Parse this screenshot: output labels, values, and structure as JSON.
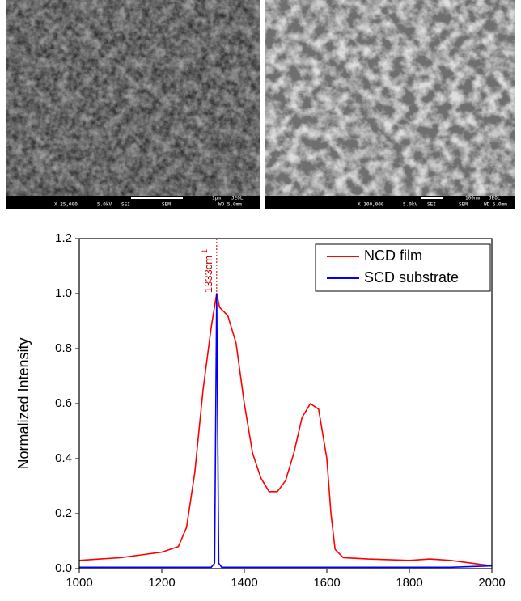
{
  "images": [
    {
      "magnification": "X 25,000",
      "voltage": "5.0kV",
      "detector": "SEI",
      "mode": "SEM",
      "wd": "WD 5.0mm",
      "scale_label": "1μm",
      "brand": "JEOL"
    },
    {
      "magnification": "X 100,000",
      "voltage": "5.0kV",
      "detector": "SEI",
      "mode": "SEM",
      "wd": "WD 5.0mm",
      "scale_label": "100nm",
      "brand": "JEOL"
    }
  ],
  "chart_data": {
    "type": "line",
    "ylabel": "Normalized Intensity",
    "xlim": [
      1000,
      2000
    ],
    "xticks": [
      1000,
      1200,
      1400,
      1600,
      1800,
      2000
    ],
    "ylim": [
      0,
      1.2
    ],
    "yticks": [
      {
        "value": 0,
        "label": "0.0"
      },
      {
        "value": 0.2,
        "label": "0.2"
      },
      {
        "value": 0.4,
        "label": "0.4"
      },
      {
        "value": 0.6,
        "label": "0.6"
      },
      {
        "value": 0.8,
        "label": "0.8"
      },
      {
        "value": 1,
        "label": "1.0"
      },
      {
        "value": 1.2,
        "label": "1.2"
      }
    ],
    "legend": "upper right",
    "annotation": {
      "text": "1333cm",
      "superscript": "-1",
      "x": 1333,
      "color": "#cc0000"
    },
    "series": [
      {
        "name": "NCD film",
        "color": "#ff0000",
        "x": [
          1000,
          1050,
          1100,
          1150,
          1200,
          1240,
          1260,
          1280,
          1300,
          1320,
          1333,
          1340,
          1360,
          1380,
          1400,
          1420,
          1440,
          1460,
          1480,
          1500,
          1520,
          1540,
          1560,
          1580,
          1600,
          1610,
          1620,
          1640,
          1700,
          1800,
          1850,
          1900,
          1950,
          2000
        ],
        "values": [
          0.03,
          0.035,
          0.04,
          0.05,
          0.06,
          0.08,
          0.15,
          0.35,
          0.65,
          0.88,
          1.0,
          0.95,
          0.92,
          0.82,
          0.6,
          0.42,
          0.33,
          0.28,
          0.28,
          0.32,
          0.42,
          0.55,
          0.6,
          0.58,
          0.4,
          0.2,
          0.07,
          0.04,
          0.035,
          0.03,
          0.035,
          0.03,
          0.02,
          0.01
        ]
      },
      {
        "name": "SCD substrate",
        "color": "#0000ff",
        "x": [
          1000,
          1320,
          1328,
          1333,
          1338,
          1345,
          1900,
          2000
        ],
        "values": [
          0.005,
          0.005,
          0.02,
          1.0,
          0.02,
          0.005,
          0.005,
          0.01
        ]
      }
    ]
  }
}
